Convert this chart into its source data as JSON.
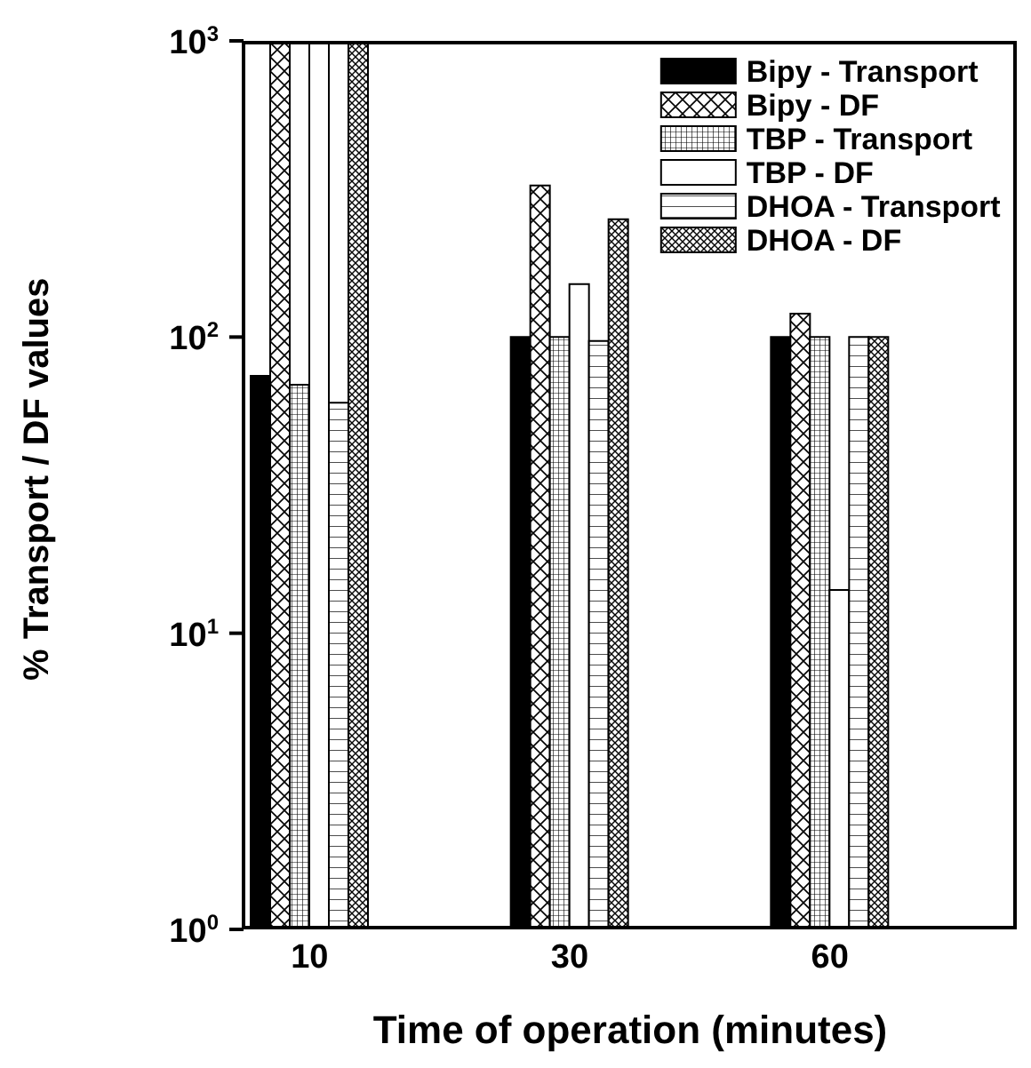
{
  "chart_data": {
    "type": "bar",
    "xlabel": "Time of operation (minutes)",
    "ylabel": "% Transport / DF values",
    "categories": [
      "10",
      "30",
      "60"
    ],
    "log": "y",
    "ylim": [
      1,
      1000
    ],
    "yticks": [
      {
        "value": 1,
        "label": "10$^{0}$"
      },
      {
        "value": 10,
        "label": "10$^{1}$"
      },
      {
        "value": 100,
        "label": "10$^{2}$"
      },
      {
        "value": 1000,
        "label": "10$^{3}$"
      }
    ],
    "legend": "top",
    "grid": false,
    "series": [
      {
        "name": "Bipy - Transport",
        "color": "#000000",
        "values": [
          74,
          100,
          100
        ]
      },
      {
        "name": "Bipy - DF",
        "color": "#000000",
        "values": [
          1000,
          325,
          120
        ]
      },
      {
        "name": "TBP - Transport",
        "color": "#000000",
        "values": [
          69,
          100,
          100
        ]
      },
      {
        "name": "TBP - DF",
        "color": "#ffffff",
        "values": [
          1000,
          151,
          14
        ]
      },
      {
        "name": "DHOA - Transport",
        "color": "#000000",
        "values": [
          60,
          97,
          100
        ]
      },
      {
        "name": "DHOA - DF",
        "color": "#000000",
        "values": [
          1000,
          250,
          100
        ]
      }
    ]
  }
}
